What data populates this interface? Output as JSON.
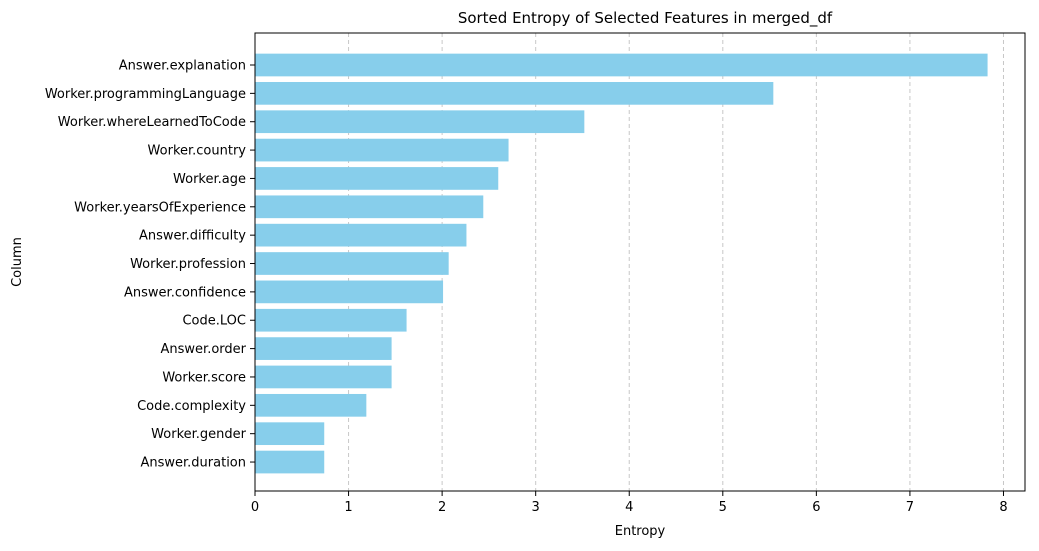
{
  "chart_data": {
    "type": "bar",
    "orientation": "horizontal",
    "title": "Sorted Entropy of Selected Features in merged_df",
    "xlabel": "Entropy",
    "ylabel": "Column",
    "categories": [
      "Answer.explanation",
      "Worker.programmingLanguage",
      "Worker.whereLearnedToCode",
      "Worker.country",
      "Worker.age",
      "Worker.yearsOfExperience",
      "Answer.difficulty",
      "Worker.profession",
      "Answer.confidence",
      "Code.LOC",
      "Answer.order",
      "Worker.score",
      "Code.complexity",
      "Worker.gender",
      "Answer.duration"
    ],
    "values": [
      7.83,
      5.54,
      3.52,
      2.71,
      2.6,
      2.44,
      2.26,
      2.07,
      2.01,
      1.62,
      1.46,
      1.46,
      1.19,
      0.74,
      0.74
    ],
    "xticks": [
      "0",
      "1",
      "2",
      "3",
      "4",
      "5",
      "6",
      "7",
      "8"
    ],
    "xlim": [
      0,
      8.23
    ],
    "grid": "x-dashed",
    "bar_color": "#87ceeb",
    "grid_color": "#c8c8c8"
  }
}
